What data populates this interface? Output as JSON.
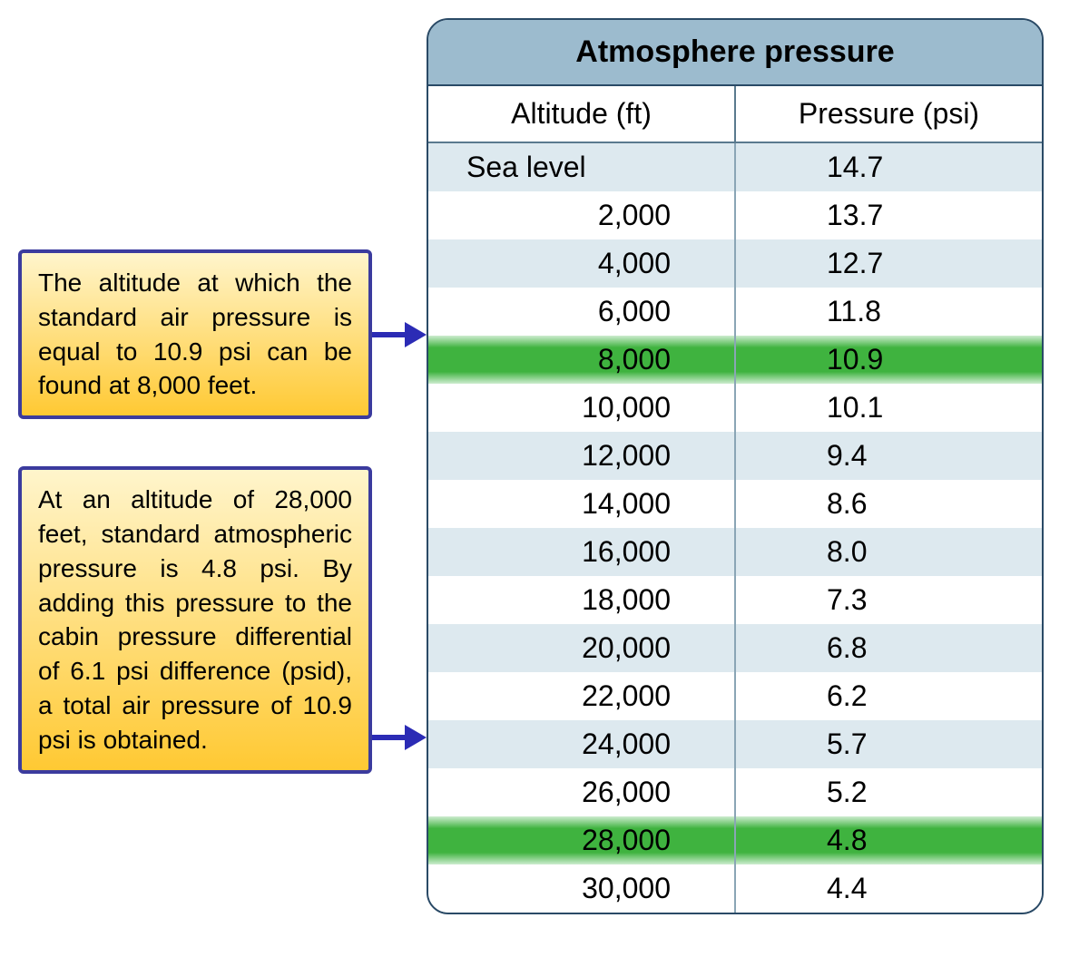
{
  "table": {
    "title": "Atmosphere pressure",
    "columns": [
      "Altitude (ft)",
      "Pressure (psi)"
    ],
    "rows": [
      {
        "altitude": "Sea level",
        "pressure": "14.7",
        "stripe": "light",
        "sea": true
      },
      {
        "altitude": "2,000",
        "pressure": "13.7",
        "stripe": "white"
      },
      {
        "altitude": "4,000",
        "pressure": "12.7",
        "stripe": "light"
      },
      {
        "altitude": "6,000",
        "pressure": "11.8",
        "stripe": "white"
      },
      {
        "altitude": "8,000",
        "pressure": "10.9",
        "stripe": "highlight"
      },
      {
        "altitude": "10,000",
        "pressure": "10.1",
        "stripe": "white"
      },
      {
        "altitude": "12,000",
        "pressure": "9.4",
        "stripe": "light"
      },
      {
        "altitude": "14,000",
        "pressure": "8.6",
        "stripe": "white"
      },
      {
        "altitude": "16,000",
        "pressure": "8.0",
        "stripe": "light"
      },
      {
        "altitude": "18,000",
        "pressure": "7.3",
        "stripe": "white"
      },
      {
        "altitude": "20,000",
        "pressure": "6.8",
        "stripe": "light"
      },
      {
        "altitude": "22,000",
        "pressure": "6.2",
        "stripe": "white"
      },
      {
        "altitude": "24,000",
        "pressure": "5.7",
        "stripe": "light"
      },
      {
        "altitude": "26,000",
        "pressure": "5.2",
        "stripe": "white"
      },
      {
        "altitude": "28,000",
        "pressure": "4.8",
        "stripe": "highlight"
      },
      {
        "altitude": "30,000",
        "pressure": "4.4",
        "stripe": "white"
      }
    ]
  },
  "callouts": [
    "The altitude at which the standard air pressure is equal to 10.9 psi can be found at 8,000 feet.",
    "At an altitude of 28,000 feet, standard atmo­spheric pressure is 4.8 psi. By adding this pressure to the cabin pressure differential of 6.1 psi difference (psid), a total air pressure of 10.9 psi is obtained."
  ],
  "colors": {
    "callout_border": "#3b3b9e",
    "callout_grad_top": "#fff5cc",
    "callout_grad_bottom": "#ffc933",
    "arrow": "#2b2bb5",
    "table_border": "#2a4a66",
    "title_bg": "#9cbbce",
    "stripe_light": "#dde9ef",
    "stripe_white": "#ffffff",
    "highlight_mid": "#3fb33f",
    "highlight_edge": "#cdeccf",
    "cell_divider": "#8aa5b5"
  }
}
